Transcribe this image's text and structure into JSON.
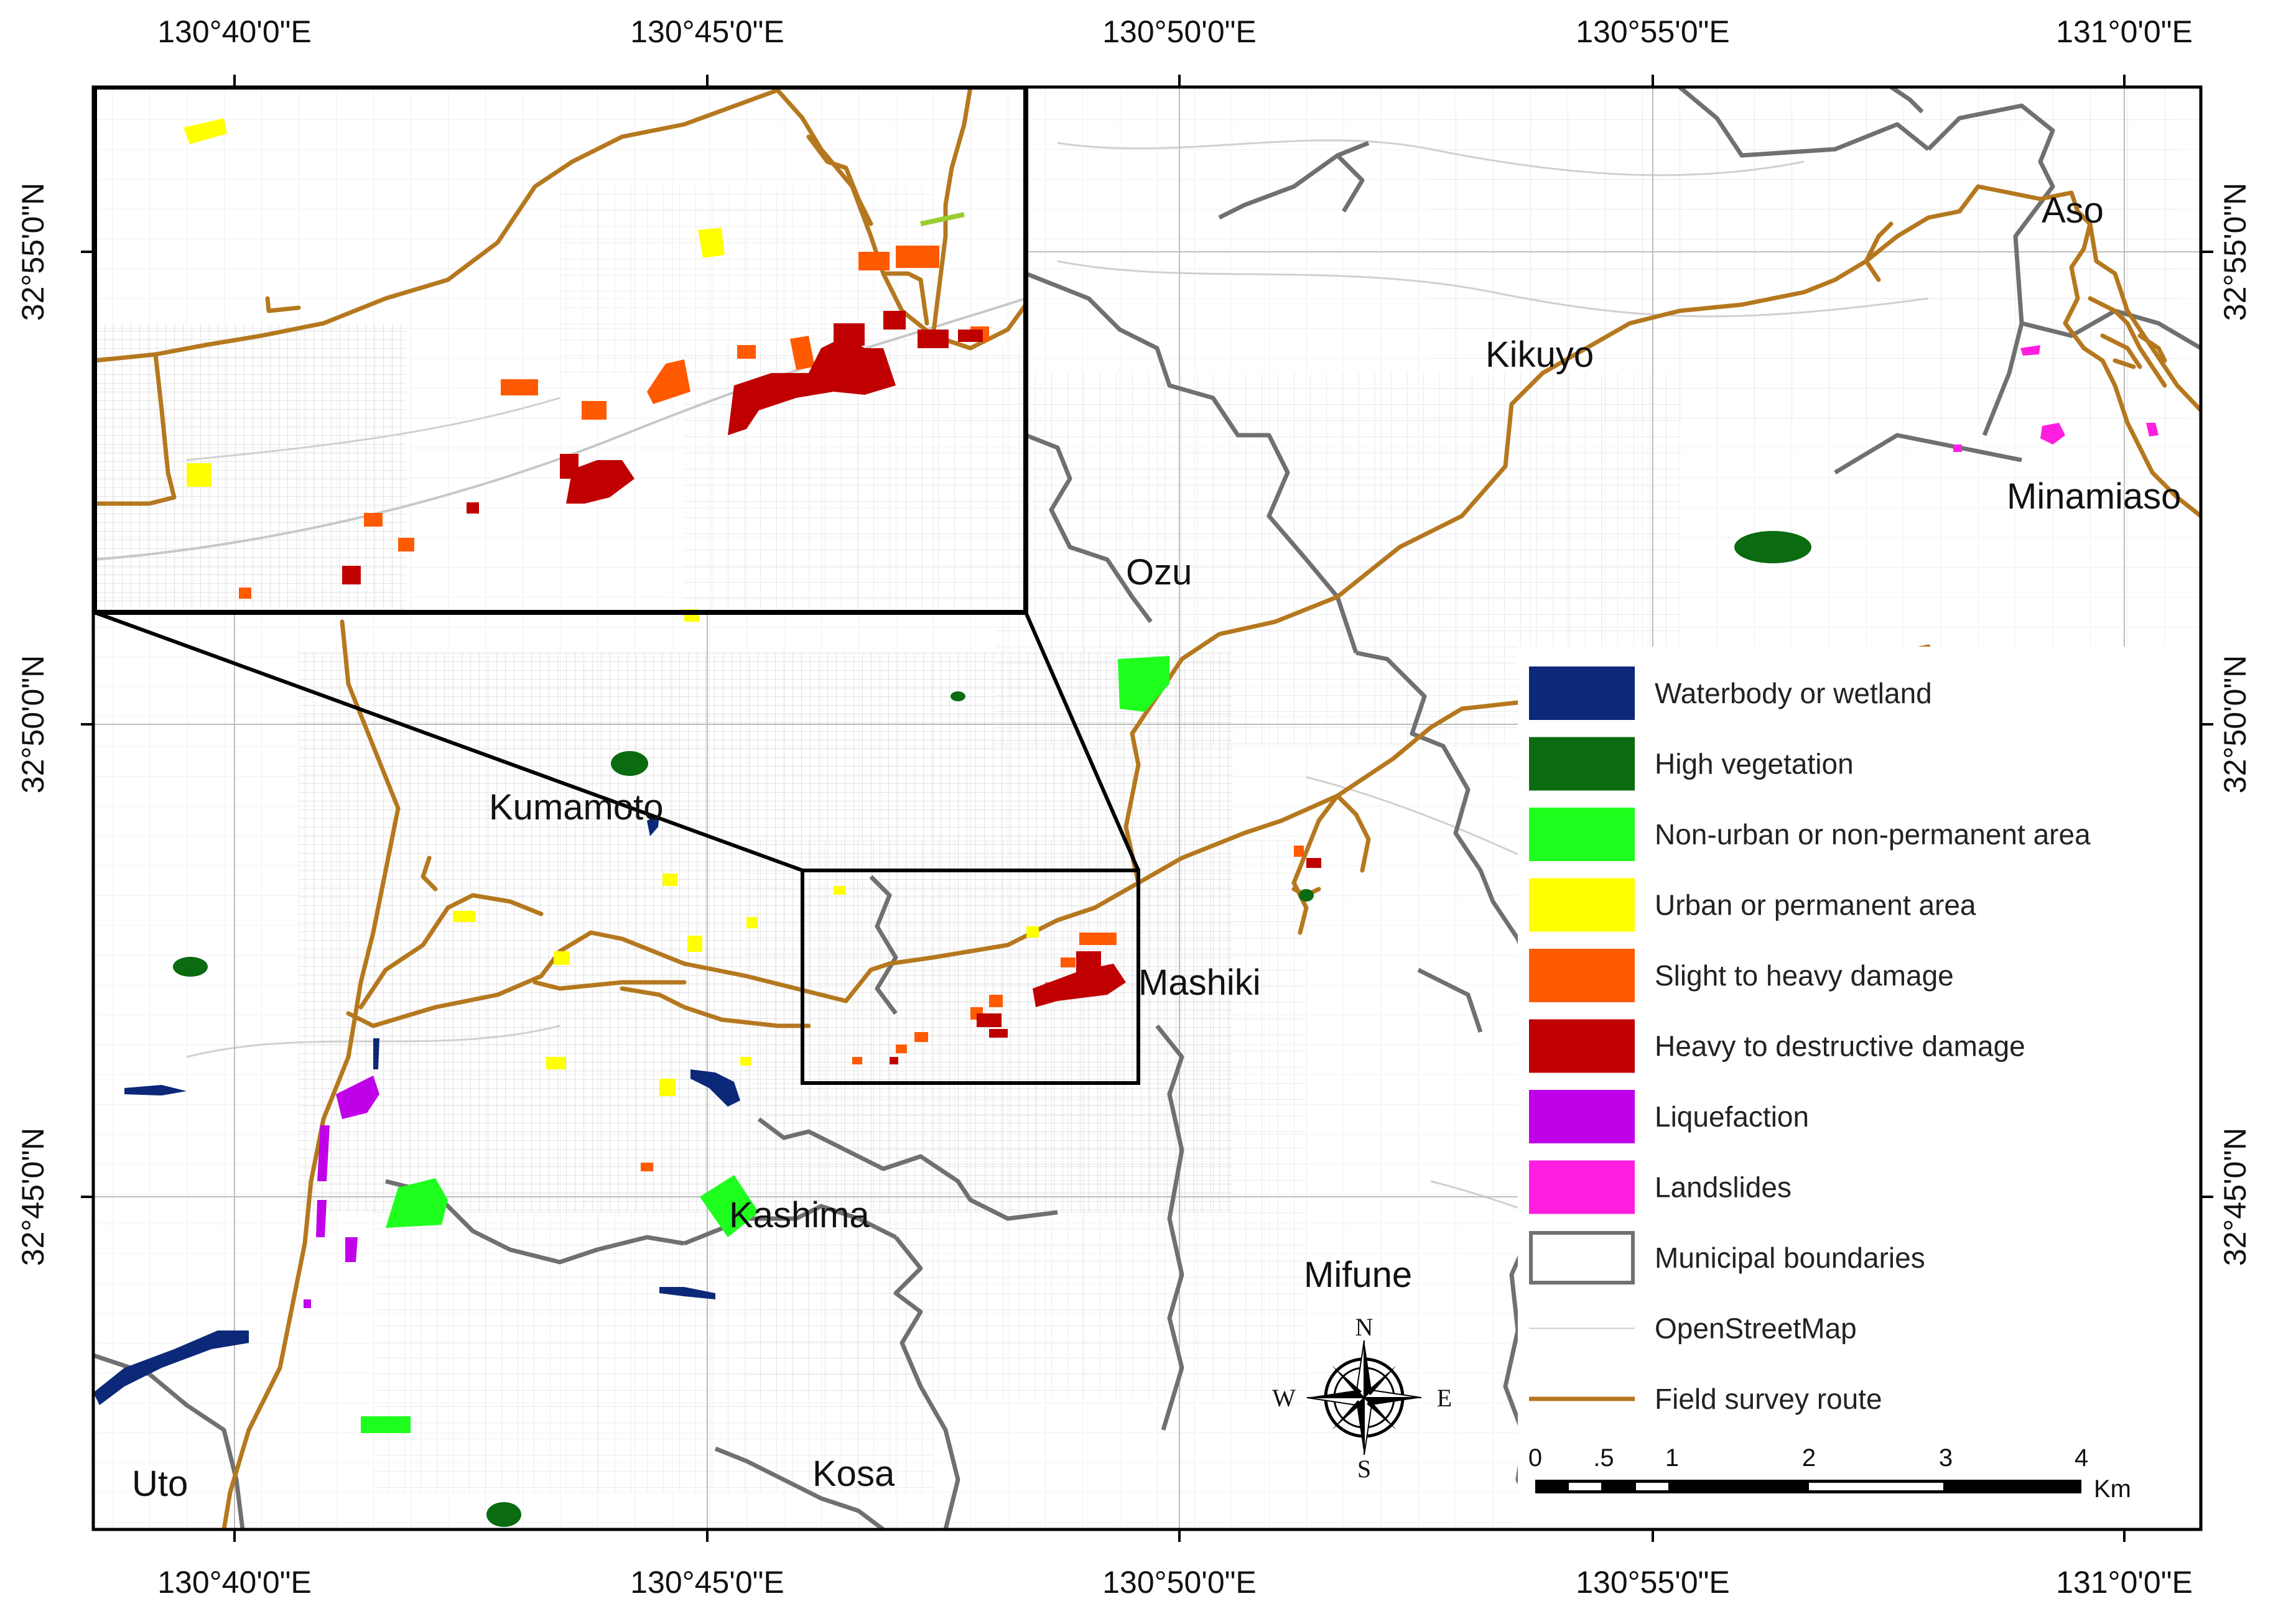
{
  "coordinates": {
    "top": [
      "130°40'0\"E",
      "130°45'0\"E",
      "130°50'0\"E",
      "130°55'0\"E",
      "131°0'0\"E"
    ],
    "bottom": [
      "130°40'0\"E",
      "130°45'0\"E",
      "130°50'0\"E",
      "130°55'0\"E",
      "131°0'0\"E"
    ],
    "left": [
      "32°55'0\"N",
      "32°50'0\"N",
      "32°45'0\"N"
    ],
    "right": [
      "32°55'0\"N",
      "32°50'0\"N",
      "32°45'0\"N"
    ]
  },
  "places": {
    "aso": "Aso",
    "kikuyo": "Kikuyo",
    "minamiaso": "Minamiaso",
    "ozu": "Ozu",
    "kumamoto": "Kumamoto",
    "mashiki": "Mashiki",
    "kashima": "Kashima",
    "mifune": "Mifune",
    "uto": "Uto",
    "kosa": "Kosa"
  },
  "legend": [
    {
      "label": "Waterbody or wetland",
      "color": "#0c2878",
      "kind": "fill"
    },
    {
      "label": "High vegetation",
      "color": "#0a6b10",
      "kind": "fill"
    },
    {
      "label": "Non-urban or non-permanent area",
      "color": "#1eff1e",
      "kind": "fill"
    },
    {
      "label": "Urban or permanent area",
      "color": "#ffff00",
      "kind": "fill"
    },
    {
      "label": "Slight to heavy damage",
      "color": "#ff5a00",
      "kind": "fill"
    },
    {
      "label": "Heavy to destructive damage",
      "color": "#c00000",
      "kind": "fill"
    },
    {
      "label": "Liquefaction",
      "color": "#c000e8",
      "kind": "fill"
    },
    {
      "label": "Landslides",
      "color": "#ff1ee0",
      "kind": "fill"
    },
    {
      "label": "Municipal boundaries",
      "color": "#707070",
      "kind": "outline"
    },
    {
      "label": "OpenStreetMap",
      "color": "#cfcfcf",
      "kind": "line"
    },
    {
      "label": "Field survey route",
      "color": "#b5781e",
      "kind": "route"
    }
  ],
  "scale_bar": {
    "ticks": [
      "0",
      ".5",
      "1",
      "2",
      "3",
      "4"
    ],
    "unit": "Km"
  },
  "compass": {
    "n": "N",
    "s": "S",
    "e": "E",
    "w": "W"
  },
  "colors": {
    "route": "#b5781e",
    "boundary": "#707070",
    "street": "#d0d0d0"
  }
}
